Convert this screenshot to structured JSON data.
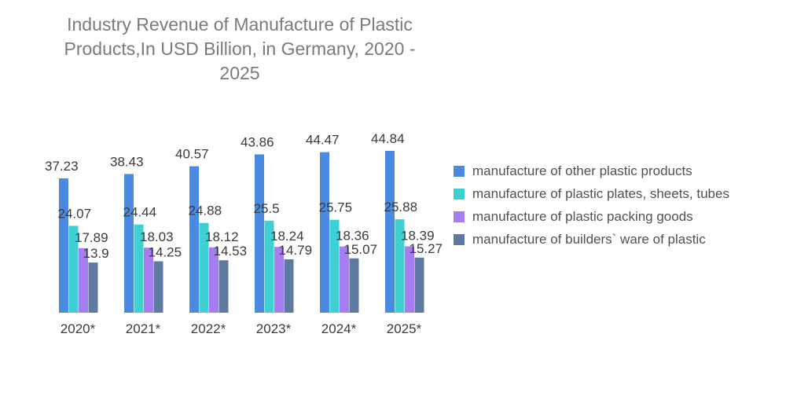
{
  "chart_data": {
    "type": "bar",
    "title": "Industry Revenue of Manufacture of Plastic Products,In USD Billion, in Germany, 2020 - 2025",
    "xlabel": "",
    "ylabel": "",
    "categories": [
      "2020*",
      "2021*",
      "2022*",
      "2023*",
      "2024*",
      "2025*"
    ],
    "ylim": [
      0,
      50
    ],
    "grid": false,
    "legend_position": "right",
    "series": [
      {
        "name": "manufacture of other plastic products",
        "color": "#4a8ae0",
        "values": [
          37.23,
          38.43,
          40.57,
          43.86,
          44.47,
          44.84
        ]
      },
      {
        "name": "manufacture of plastic plates, sheets, tubes",
        "color": "#3fd0d4",
        "values": [
          24.07,
          24.44,
          24.88,
          25.5,
          25.75,
          25.88
        ]
      },
      {
        "name": "manufacture of plastic packing goods",
        "color": "#a77ef0",
        "values": [
          17.89,
          18.03,
          18.12,
          18.24,
          18.36,
          18.39
        ]
      },
      {
        "name": "manufacture of builders` ware of plastic",
        "color": "#5f7aa0",
        "values": [
          13.9,
          14.25,
          14.53,
          14.79,
          15.07,
          15.27
        ]
      }
    ]
  }
}
